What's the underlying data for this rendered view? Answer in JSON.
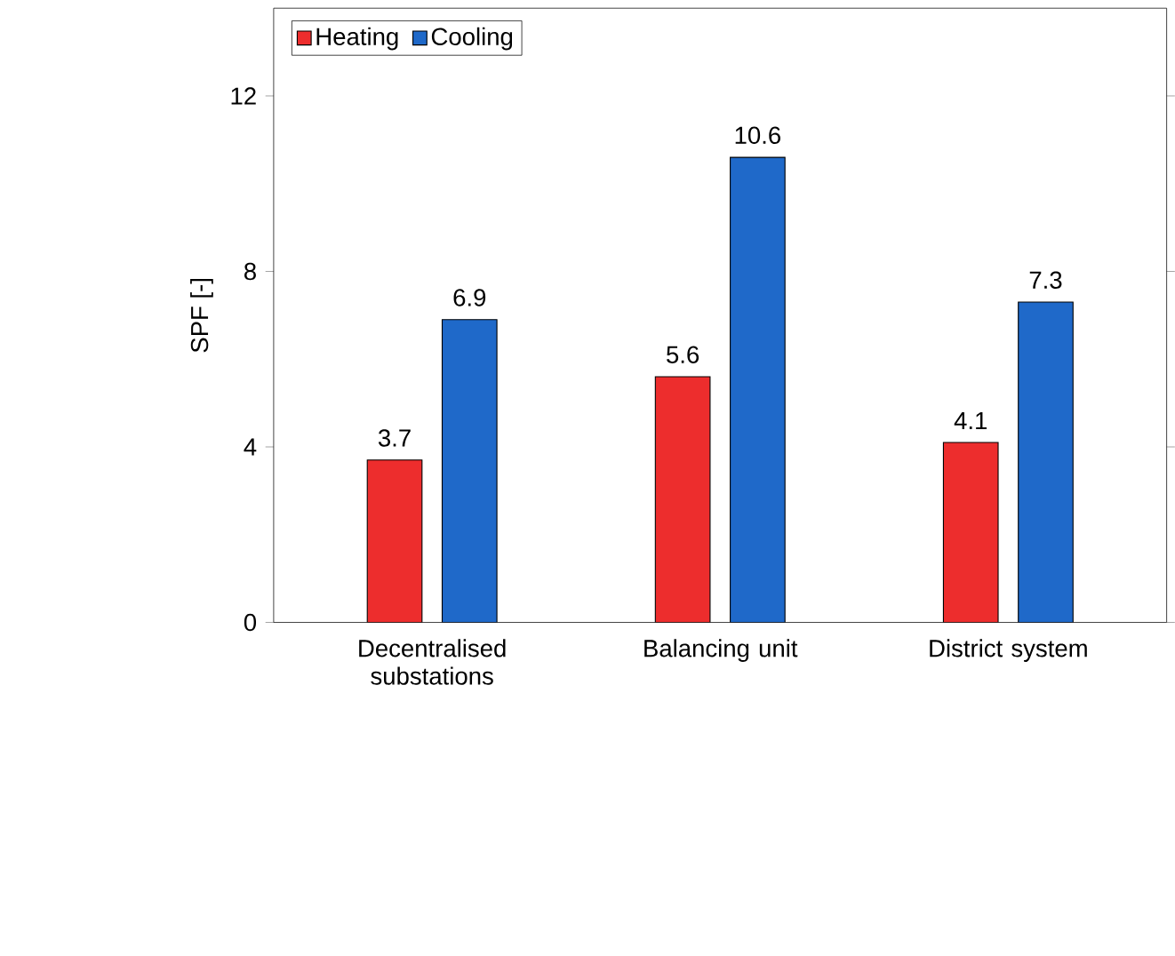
{
  "chart_data": {
    "type": "bar",
    "ylabel": "SPF [-]",
    "categories": [
      "Decentralised substations",
      "Balancing unit",
      "District system"
    ],
    "series": [
      {
        "name": "Heating",
        "color": "#ed2d2d",
        "values": [
          3.7,
          5.6,
          4.1
        ]
      },
      {
        "name": "Cooling",
        "color": "#1f69c9",
        "values": [
          6.9,
          10.6,
          7.3
        ]
      }
    ],
    "ylim": [
      0,
      14
    ],
    "yticks": [
      0,
      4,
      8,
      12
    ],
    "data_labels": true,
    "legend": "top left",
    "grid": false
  }
}
